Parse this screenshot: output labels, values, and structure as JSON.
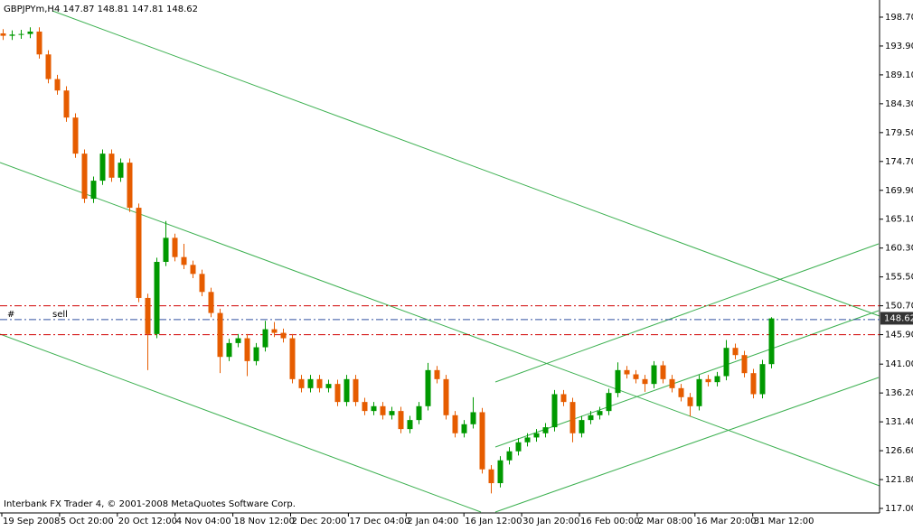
{
  "chart_data": {
    "type": "candlestick",
    "title": "GBPJPYm,H4  147.87 148.81 147.81 148.62",
    "footer": "Interbank FX Trader 4, © 2001-2008 MetaQuotes Software Corp.",
    "up_color": "#009900",
    "down_color": "#e65c00",
    "ylim": [
      116.25,
      201.25
    ],
    "yticks": [
      {
        "value": 198.7,
        "label": "198.70"
      },
      {
        "value": 193.9,
        "label": "193.90"
      },
      {
        "value": 189.1,
        "label": "189.10"
      },
      {
        "value": 184.3,
        "label": "184.30"
      },
      {
        "value": 179.5,
        "label": "179.50"
      },
      {
        "value": 174.7,
        "label": "174.70"
      },
      {
        "value": 169.9,
        "label": "169.90"
      },
      {
        "value": 165.1,
        "label": "165.10"
      },
      {
        "value": 160.3,
        "label": "160.30"
      },
      {
        "value": 155.5,
        "label": "155.50"
      },
      {
        "value": 150.7,
        "label": "150.70"
      },
      {
        "value": 145.9,
        "label": "145.90"
      },
      {
        "value": 141,
        "label": "141.00"
      },
      {
        "value": 136.2,
        "label": "136.20"
      },
      {
        "value": 131.4,
        "label": "131.40"
      },
      {
        "value": 126.6,
        "label": "126.60"
      },
      {
        "value": 121.8,
        "label": "121.80"
      },
      {
        "value": 117,
        "label": "117.00"
      }
    ],
    "xtick_labels": [
      "19 Sep 2008",
      "5 Oct 20:00",
      "20 Oct 12:00",
      "4 Nov 04:00",
      "18 Nov 12:00",
      "2 Dec 20:00",
      "17 Dec 04:00",
      "2 Jan 04:00",
      "16 Jan 12:00",
      "30 Jan 20:00",
      "16 Feb 00:00",
      "2 Mar 08:00",
      "16 Mar 20:00",
      "31 Mar 12:00"
    ],
    "hlines": [
      {
        "value": 150.7,
        "color": "#d00000"
      },
      {
        "value": 145.9,
        "color": "#d00000"
      }
    ],
    "sell_line": {
      "marker": "#",
      "name": "sell",
      "value": 148.4,
      "color": "#3050a0"
    },
    "last_price": 148.62,
    "open": [
      196.0,
      195.6,
      195.8,
      195.9,
      196.3,
      192.5,
      188.4,
      186.5,
      182.0,
      176.0,
      168.5,
      171.5,
      176.0,
      172.0,
      174.5,
      167.0,
      152.0,
      146.0,
      158.0,
      162.0,
      158.8,
      157.5,
      156.0,
      153.0,
      149.5,
      142.2,
      144.5,
      145.3,
      141.5,
      143.8,
      146.8,
      146.2,
      145.3,
      138.5,
      137.0,
      138.5,
      137.0,
      137.7,
      134.7,
      138.5,
      134.7,
      133.2,
      134.0,
      132.5,
      133.2,
      130.2,
      131.7,
      134.0,
      140.0,
      138.5,
      132.5,
      129.5,
      131.0,
      133.0,
      123.5,
      121.2,
      125.0,
      126.5,
      128.0,
      128.8,
      129.5,
      130.5,
      136.0,
      134.7,
      129.5,
      131.7,
      132.5,
      133.2,
      136.2,
      140.0,
      139.3,
      138.5,
      137.7,
      140.8,
      138.5,
      137.0,
      135.5,
      134.0,
      138.5,
      138.0,
      139.0,
      143.7,
      142.5,
      139.5,
      136.0,
      141.0
    ],
    "high": [
      196.7,
      196.5,
      196.6,
      197.0,
      197.0,
      193.2,
      189.1,
      187.2,
      182.7,
      176.7,
      172.2,
      176.7,
      176.7,
      175.2,
      175.2,
      167.7,
      152.7,
      158.7,
      164.8,
      162.7,
      161.0,
      158.2,
      156.7,
      153.7,
      150.2,
      145.2,
      146.0,
      146.0,
      144.5,
      148.2,
      148.0,
      146.9,
      146.0,
      139.2,
      139.2,
      139.2,
      138.4,
      138.4,
      139.2,
      139.2,
      135.4,
      134.7,
      134.7,
      133.9,
      133.9,
      132.4,
      134.7,
      141.2,
      140.7,
      139.2,
      133.2,
      131.7,
      135.5,
      133.7,
      124.2,
      125.7,
      127.2,
      128.7,
      129.5,
      130.2,
      131.2,
      136.7,
      136.7,
      135.4,
      132.4,
      133.2,
      133.9,
      136.9,
      141.3,
      140.7,
      140.0,
      139.2,
      141.5,
      141.5,
      139.2,
      137.7,
      136.2,
      139.2,
      139.2,
      139.7,
      145.0,
      144.4,
      143.2,
      140.2,
      141.7,
      148.8
    ],
    "low": [
      194.9,
      194.9,
      195.1,
      195.2,
      191.8,
      187.7,
      185.8,
      181.3,
      175.3,
      167.8,
      167.8,
      170.8,
      171.3,
      171.3,
      166.3,
      151.3,
      140.0,
      145.3,
      157.3,
      158.1,
      156.8,
      155.3,
      152.3,
      148.8,
      139.5,
      141.5,
      143.8,
      139.0,
      140.8,
      143.1,
      145.5,
      144.6,
      137.8,
      136.3,
      136.3,
      136.3,
      136.3,
      134.0,
      134.0,
      134.0,
      132.5,
      132.5,
      131.8,
      131.8,
      129.5,
      129.5,
      131.0,
      133.3,
      137.8,
      131.8,
      128.8,
      128.8,
      130.3,
      122.8,
      119.5,
      120.5,
      124.3,
      125.8,
      127.3,
      128.1,
      128.8,
      129.8,
      134.0,
      128.0,
      128.8,
      131.0,
      131.8,
      132.5,
      135.5,
      138.6,
      137.8,
      136.4,
      137.0,
      137.8,
      136.3,
      134.8,
      132.3,
      133.3,
      137.3,
      137.3,
      138.3,
      141.8,
      138.8,
      135.3,
      135.3,
      140.3
    ],
    "close": [
      195.6,
      195.8,
      195.9,
      196.3,
      192.5,
      188.4,
      186.5,
      182.0,
      176.0,
      168.5,
      171.5,
      176.0,
      172.0,
      174.5,
      167.0,
      152.0,
      146.0,
      158.0,
      162.0,
      158.8,
      157.5,
      156.0,
      153.0,
      149.5,
      142.2,
      144.5,
      145.3,
      141.5,
      143.8,
      146.8,
      146.2,
      145.3,
      138.5,
      137.0,
      138.5,
      137.0,
      137.7,
      134.7,
      138.5,
      134.7,
      133.2,
      134.0,
      132.5,
      133.2,
      130.2,
      131.7,
      134.0,
      140.0,
      138.5,
      132.5,
      129.5,
      131.0,
      133.0,
      123.5,
      121.2,
      125.0,
      126.5,
      128.0,
      128.8,
      129.5,
      130.5,
      136.0,
      134.7,
      129.5,
      131.7,
      132.5,
      133.2,
      136.2,
      140.0,
      139.3,
      138.5,
      137.7,
      140.8,
      138.5,
      137.0,
      135.5,
      134.0,
      138.5,
      138.0,
      139.0,
      143.7,
      142.5,
      139.5,
      136.0,
      141.0,
      148.6
    ]
  }
}
